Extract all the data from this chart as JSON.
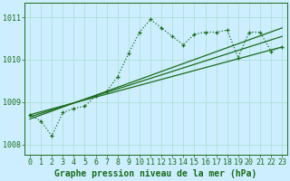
{
  "background_color": "#cceeff",
  "grid_color": "#aaddcc",
  "line_color": "#1a6b1a",
  "xlabel": "Graphe pression niveau de la mer (hPa)",
  "xlabel_fontsize": 7,
  "tick_fontsize": 6,
  "xlim": [
    -0.5,
    23.5
  ],
  "ylim": [
    1007.75,
    1011.35
  ],
  "yticks": [
    1008,
    1009,
    1010,
    1011
  ],
  "xticks": [
    0,
    1,
    2,
    3,
    4,
    5,
    6,
    7,
    8,
    9,
    10,
    11,
    12,
    13,
    14,
    15,
    16,
    17,
    18,
    19,
    20,
    21,
    22,
    23
  ],
  "dotted": {
    "x": [
      0,
      1,
      2,
      3,
      4,
      5,
      6,
      7,
      8,
      9,
      10,
      11,
      12,
      13,
      14,
      15,
      16,
      17,
      18,
      19,
      20,
      21,
      22,
      23
    ],
    "y": [
      1008.7,
      1008.55,
      1008.2,
      1008.75,
      1008.85,
      1008.9,
      1009.15,
      1009.25,
      1009.6,
      1010.15,
      1010.65,
      1010.95,
      1010.75,
      1010.55,
      1010.35,
      1010.6,
      1010.65,
      1010.65,
      1010.7,
      1010.05,
      1010.65,
      1010.65,
      1010.2,
      1010.3
    ]
  },
  "solid1": {
    "x": [
      0,
      23
    ],
    "y": [
      1008.7,
      1010.3
    ]
  },
  "solid2": {
    "x": [
      0,
      23
    ],
    "y": [
      1008.65,
      1010.55
    ]
  },
  "solid3": {
    "x": [
      0,
      23
    ],
    "y": [
      1008.6,
      1010.75
    ]
  }
}
